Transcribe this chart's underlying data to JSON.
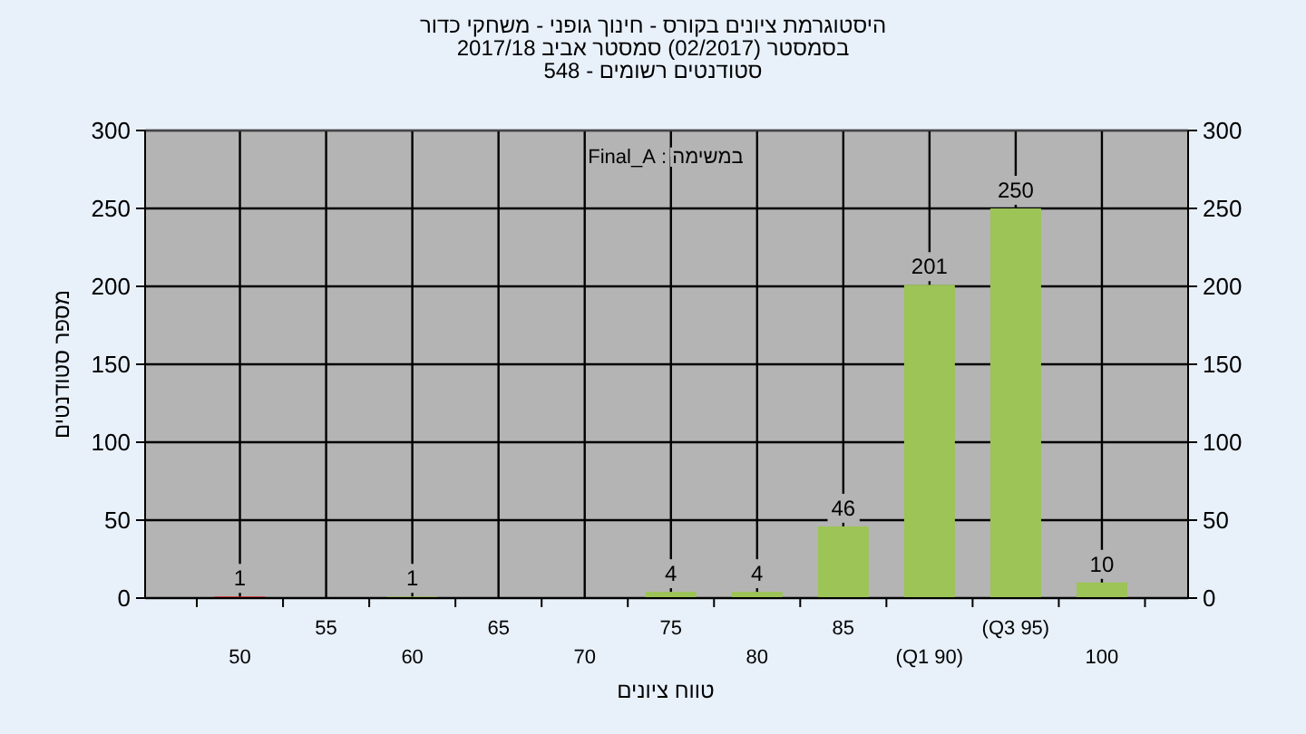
{
  "chart_data": {
    "type": "bar",
    "title": "היסטוגרמת ציונים בקורס - חינוך גופני - משחקי כדור",
    "subtitle": "בסמסטר  (02/2017)  סמסטר אביב 2017/18",
    "annotations": [
      "סטודנטים רשומים - 548",
      "במשימה : Final_A"
    ],
    "xlabel": "טווח ציונים",
    "ylabel": "מספר סטודנטים",
    "categories": [
      "50",
      "55",
      "60",
      "65",
      "70",
      "75",
      "80",
      "85",
      "(Q1 90)",
      "(Q3 95)",
      "100"
    ],
    "values": [
      1,
      0,
      1,
      0,
      0,
      4,
      4,
      46,
      201,
      250,
      10
    ],
    "value_labels": [
      "1",
      null,
      "1",
      null,
      null,
      "4",
      "4",
      "46",
      "201",
      "250",
      "10"
    ],
    "colors": [
      "#e02828",
      "#9cc456",
      "#9cc456",
      "#9cc456",
      "#9cc456",
      "#9cc456",
      "#9cc456",
      "#9cc456",
      "#9cc456",
      "#9cc456",
      "#9cc456"
    ],
    "ylim": [
      0,
      300
    ],
    "yticks": [
      0,
      50,
      100,
      150,
      200,
      250,
      300
    ],
    "y2lim": [
      0,
      300
    ],
    "y2ticks": [
      0,
      50,
      100,
      150,
      200,
      250,
      300
    ],
    "grid": true
  }
}
